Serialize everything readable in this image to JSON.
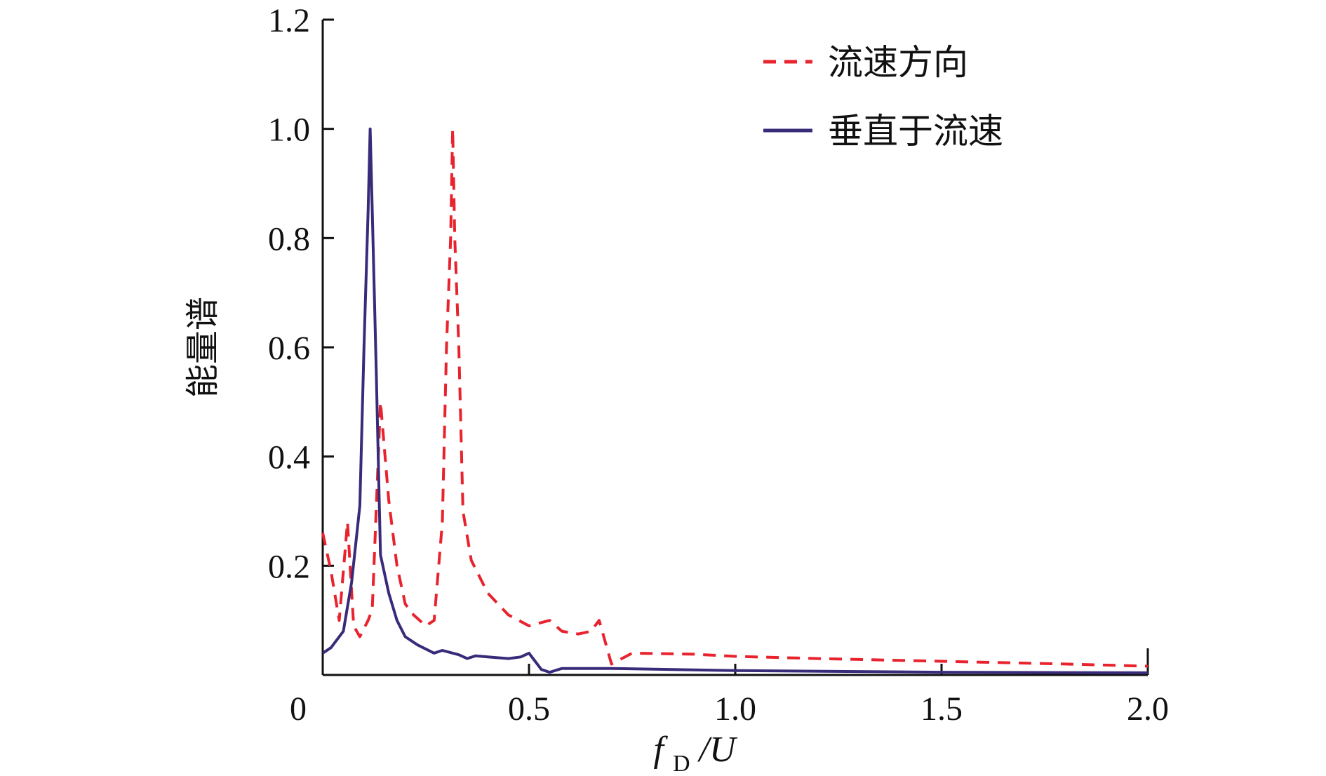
{
  "chart_data": {
    "type": "line",
    "ylabel": "能量谱",
    "xlabel": {
      "main": "f",
      "subscript": "D",
      "rest": "/U"
    },
    "xlim": [
      0,
      2.0
    ],
    "ylim": [
      0,
      1.2
    ],
    "x_ticks": [
      0,
      0.5,
      1.0,
      1.5,
      2.0
    ],
    "x_tick_labels": [
      "0",
      "0.5",
      "1.0",
      "1.5",
      "2.0"
    ],
    "y_ticks": [
      0.2,
      0.4,
      0.6,
      0.8,
      1.0,
      1.2
    ],
    "y_tick_labels": [
      "0.2",
      "0.4",
      "0.6",
      "0.8",
      "1.0",
      "1.2"
    ],
    "grid": false,
    "legend_position": "top-right",
    "series": [
      {
        "name": "流速方向",
        "style": "dashed",
        "color": "#e8232d",
        "points": [
          [
            0.0,
            0.26
          ],
          [
            0.02,
            0.19
          ],
          [
            0.04,
            0.1
          ],
          [
            0.06,
            0.28
          ],
          [
            0.075,
            0.09
          ],
          [
            0.09,
            0.07
          ],
          [
            0.11,
            0.1
          ],
          [
            0.12,
            0.12
          ],
          [
            0.14,
            0.5
          ],
          [
            0.16,
            0.32
          ],
          [
            0.18,
            0.2
          ],
          [
            0.2,
            0.13
          ],
          [
            0.22,
            0.11
          ],
          [
            0.25,
            0.09
          ],
          [
            0.27,
            0.1
          ],
          [
            0.29,
            0.28
          ],
          [
            0.3,
            0.6
          ],
          [
            0.31,
            0.8
          ],
          [
            0.315,
            1.0
          ],
          [
            0.32,
            0.8
          ],
          [
            0.33,
            0.6
          ],
          [
            0.34,
            0.3
          ],
          [
            0.36,
            0.21
          ],
          [
            0.4,
            0.15
          ],
          [
            0.45,
            0.11
          ],
          [
            0.5,
            0.09
          ],
          [
            0.55,
            0.1
          ],
          [
            0.58,
            0.08
          ],
          [
            0.62,
            0.075
          ],
          [
            0.65,
            0.08
          ],
          [
            0.67,
            0.1
          ],
          [
            0.7,
            0.02
          ],
          [
            0.75,
            0.04
          ],
          [
            0.9,
            0.038
          ],
          [
            1.0,
            0.034
          ],
          [
            1.2,
            0.03
          ],
          [
            1.5,
            0.025
          ],
          [
            1.8,
            0.02
          ],
          [
            2.0,
            0.016
          ]
        ]
      },
      {
        "name": "垂直于流速",
        "style": "solid",
        "color": "#3a2b7a",
        "points": [
          [
            0.0,
            0.04
          ],
          [
            0.02,
            0.05
          ],
          [
            0.05,
            0.08
          ],
          [
            0.07,
            0.17
          ],
          [
            0.09,
            0.31
          ],
          [
            0.1,
            0.6
          ],
          [
            0.11,
            0.85
          ],
          [
            0.115,
            1.0
          ],
          [
            0.12,
            0.85
          ],
          [
            0.13,
            0.55
          ],
          [
            0.14,
            0.22
          ],
          [
            0.16,
            0.15
          ],
          [
            0.18,
            0.1
          ],
          [
            0.2,
            0.07
          ],
          [
            0.23,
            0.055
          ],
          [
            0.27,
            0.04
          ],
          [
            0.29,
            0.045
          ],
          [
            0.33,
            0.037
          ],
          [
            0.35,
            0.03
          ],
          [
            0.37,
            0.035
          ],
          [
            0.4,
            0.033
          ],
          [
            0.45,
            0.03
          ],
          [
            0.48,
            0.033
          ],
          [
            0.5,
            0.04
          ],
          [
            0.53,
            0.01
          ],
          [
            0.55,
            0.005
          ],
          [
            0.58,
            0.012
          ],
          [
            0.7,
            0.012
          ],
          [
            1.0,
            0.008
          ],
          [
            1.5,
            0.005
          ],
          [
            2.0,
            0.004
          ]
        ]
      }
    ]
  }
}
